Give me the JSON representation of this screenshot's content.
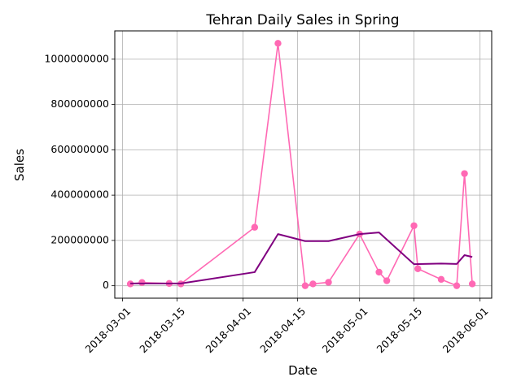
{
  "chart_data": {
    "type": "line",
    "title": "Tehran Daily Sales in Spring",
    "xlabel": "Date",
    "ylabel": "Sales",
    "grid": true,
    "x_ticks": [
      "2018-03-01",
      "2018-03-15",
      "2018-04-01",
      "2018-04-15",
      "2018-05-01",
      "2018-05-15",
      "2018-06-01"
    ],
    "y_ticks": [
      "0",
      "200000000",
      "400000000",
      "600000000",
      "800000000",
      "1000000000"
    ],
    "xlim": [
      "2018-02-27",
      "2018-06-04"
    ],
    "ylim": [
      -55000000,
      1125000000
    ],
    "series": [
      {
        "color": "#ff69b4",
        "marker": "circle",
        "x": [
          "2018-03-03",
          "2018-03-06",
          "2018-03-13",
          "2018-03-16",
          "2018-04-04",
          "2018-04-10",
          "2018-04-17",
          "2018-04-19",
          "2018-04-23",
          "2018-05-01",
          "2018-05-06",
          "2018-05-08",
          "2018-05-15",
          "2018-05-16",
          "2018-05-22",
          "2018-05-26",
          "2018-05-28",
          "2018-05-30"
        ],
        "y": [
          8000000,
          14000000,
          10000000,
          8000000,
          258000000,
          1070000000,
          0,
          8000000,
          15000000,
          228000000,
          60000000,
          22000000,
          265000000,
          75000000,
          28000000,
          0,
          495000000,
          8000000
        ]
      },
      {
        "color": "#800080",
        "marker": "none",
        "x": [
          "2018-03-03",
          "2018-03-16",
          "2018-04-04",
          "2018-04-10",
          "2018-04-17",
          "2018-04-23",
          "2018-05-01",
          "2018-05-06",
          "2018-05-15",
          "2018-05-22",
          "2018-05-26",
          "2018-05-28",
          "2018-05-30"
        ],
        "y": [
          10000000,
          10000000,
          60000000,
          228000000,
          197000000,
          197000000,
          228000000,
          235000000,
          95000000,
          98000000,
          96000000,
          135000000,
          127000000
        ]
      }
    ]
  }
}
